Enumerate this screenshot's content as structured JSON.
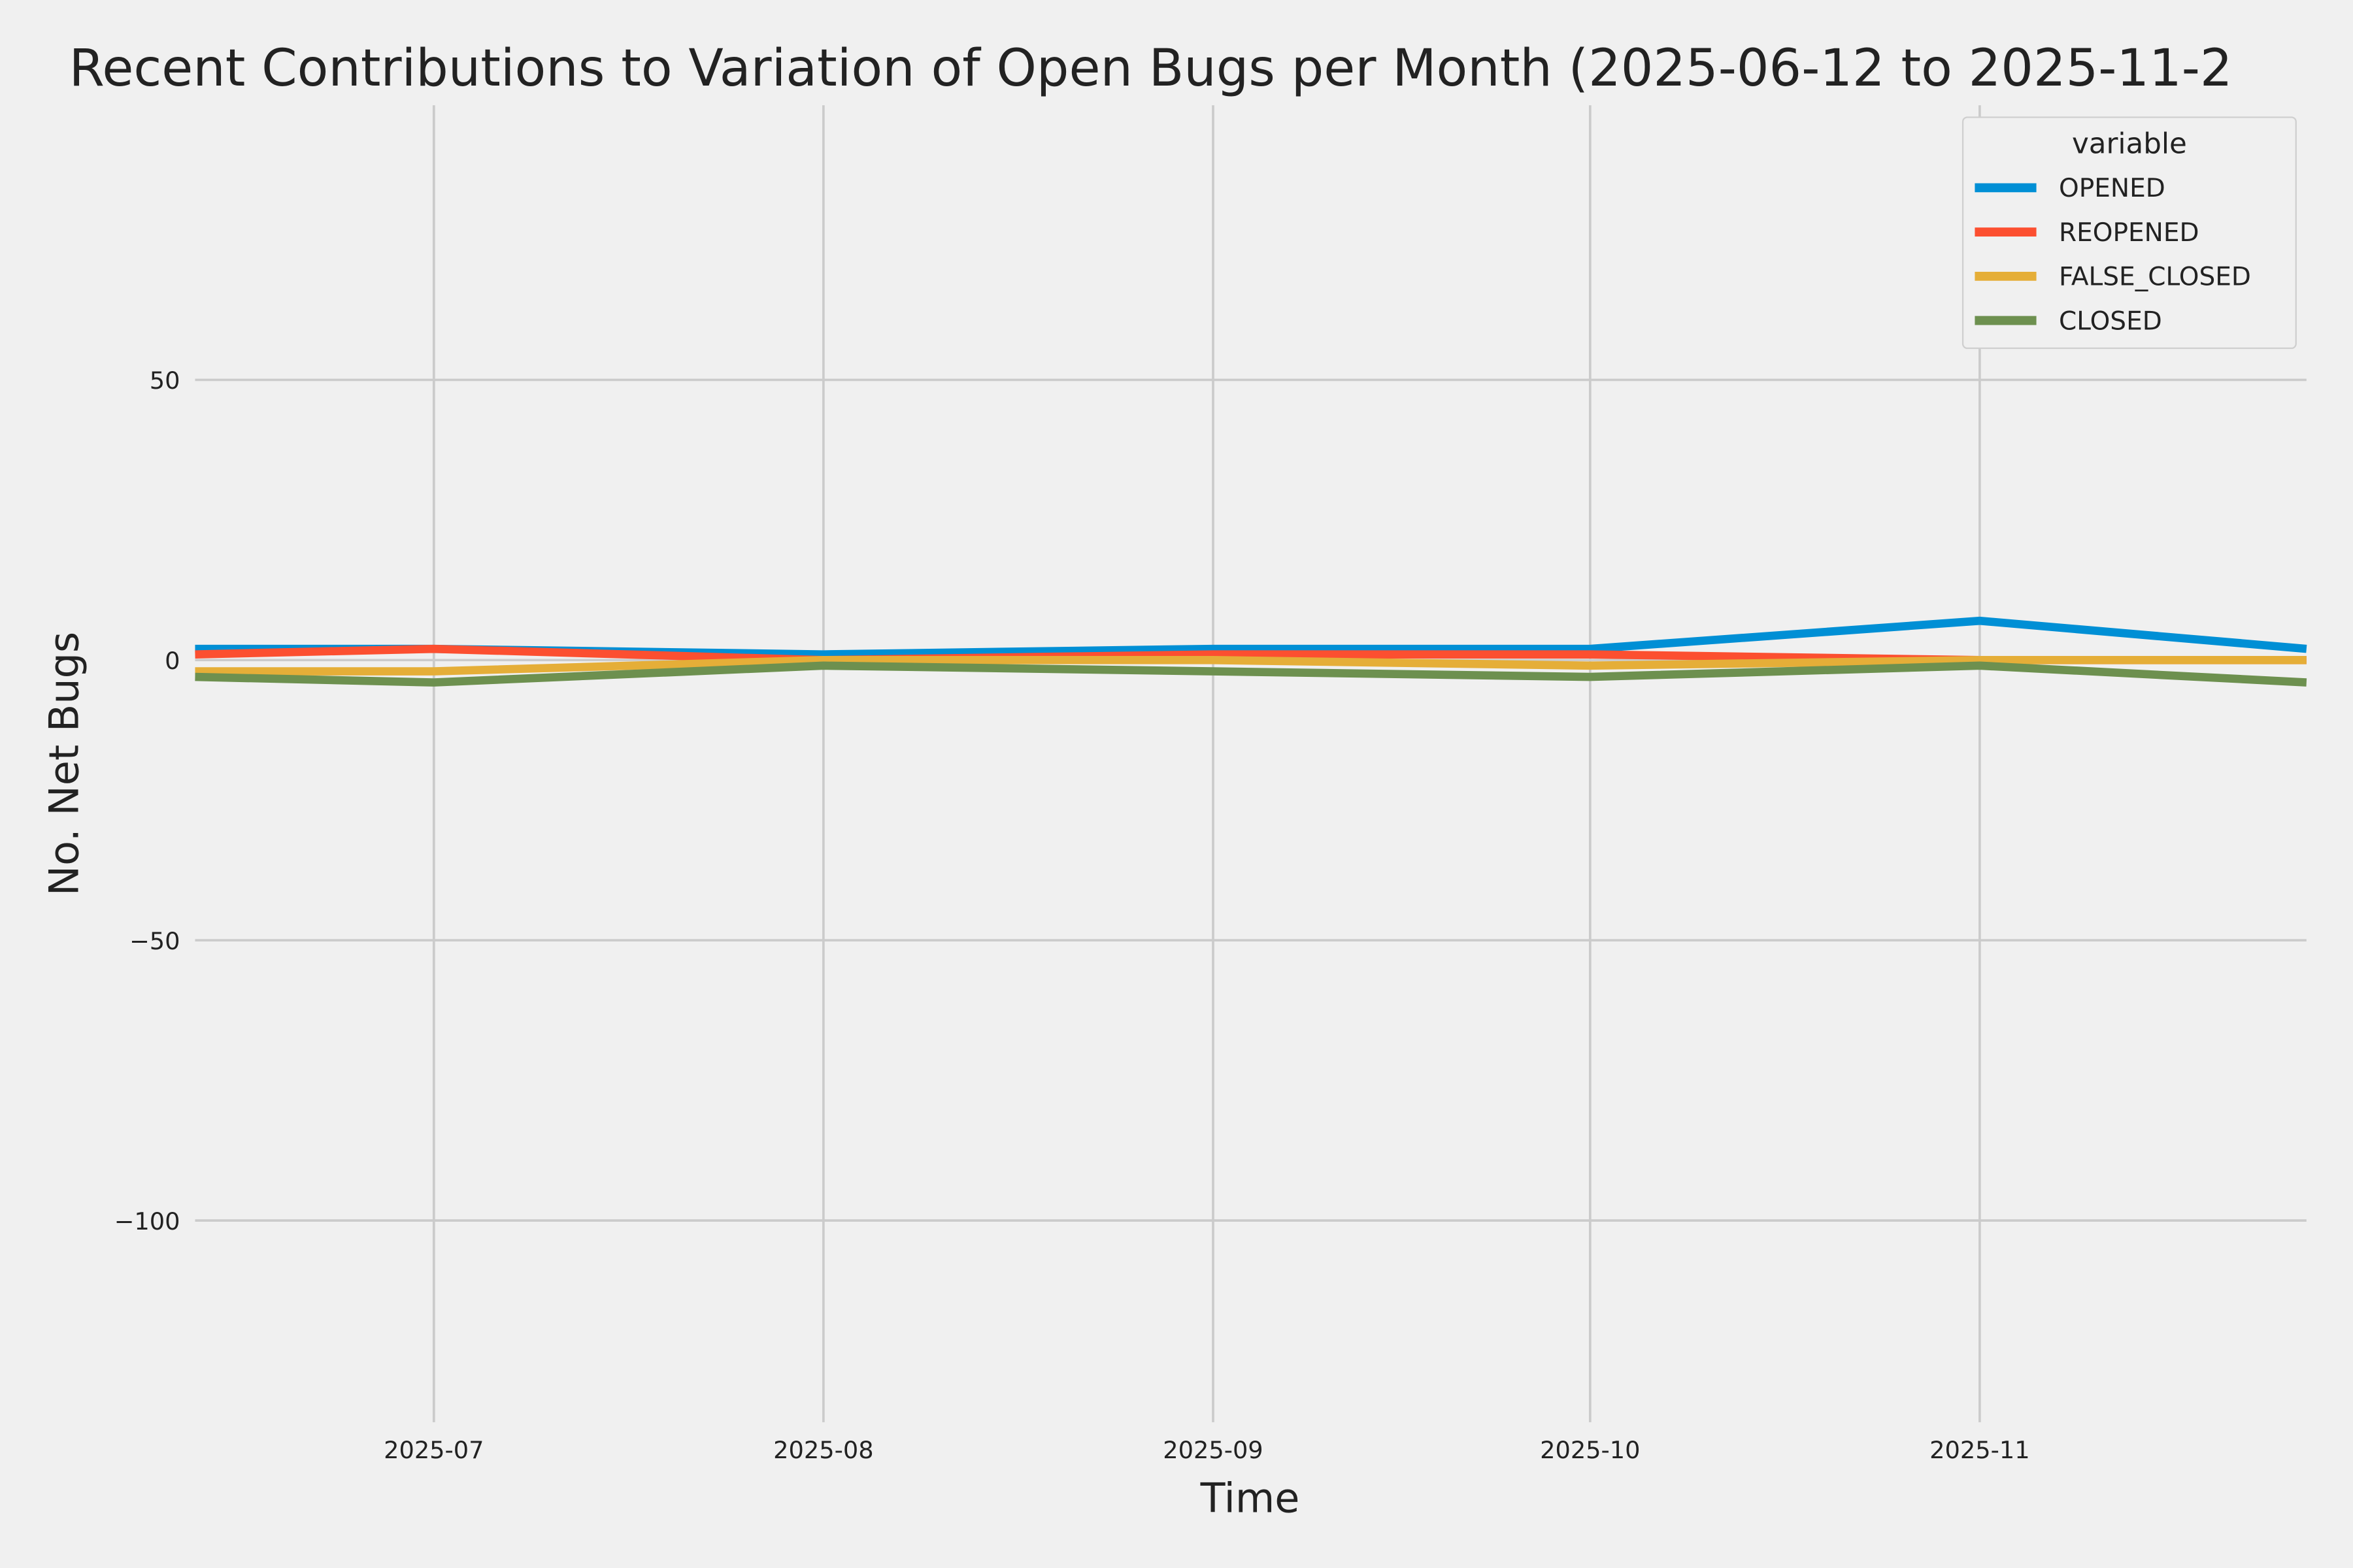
{
  "chart_data": {
    "type": "line",
    "title": "Recent Contributions to Variation of Open Bugs per Month (2025-06-12 to 2025-11-2",
    "xlabel": "Time",
    "ylabel": "No. Net Bugs",
    "x": [
      "2025-06-12",
      "2025-07-01",
      "2025-08-01",
      "2025-09-01",
      "2025-10-01",
      "2025-11-01",
      "2025-11-27"
    ],
    "xlim": [
      "2025-06-12",
      "2025-11-27"
    ],
    "xticks": [
      "2025-07-01",
      "2025-08-01",
      "2025-09-01",
      "2025-10-01",
      "2025-11-01"
    ],
    "xtick_labels": [
      "2025-07",
      "2025-08",
      "2025-09",
      "2025-10",
      "2025-11"
    ],
    "ylim": [
      -136,
      99
    ],
    "yticks": [
      50,
      0,
      -50,
      -100
    ],
    "ytick_labels": [
      "50",
      "0",
      "−50",
      "−100"
    ],
    "grid": true,
    "legend": {
      "title": "variable",
      "placement": "top-right"
    },
    "series": [
      {
        "name": "OPENED",
        "color": "#008fd5",
        "values": [
          2,
          2,
          1,
          2,
          2,
          7,
          2
        ]
      },
      {
        "name": "REOPENED",
        "color": "#fc4f30",
        "values": [
          1,
          2,
          0,
          1,
          1,
          0,
          0
        ]
      },
      {
        "name": "FALSE_CLOSED",
        "color": "#e5ae38",
        "values": [
          -2,
          -2,
          0,
          0,
          -1,
          0,
          0
        ]
      },
      {
        "name": "CLOSED",
        "color": "#6d904f",
        "values": [
          -3,
          -4,
          -1,
          -2,
          -3,
          -1,
          -4
        ]
      }
    ],
    "colors": {
      "background": "#f0f0f0",
      "grid": "#cbcbcb",
      "text": "#222222"
    }
  }
}
